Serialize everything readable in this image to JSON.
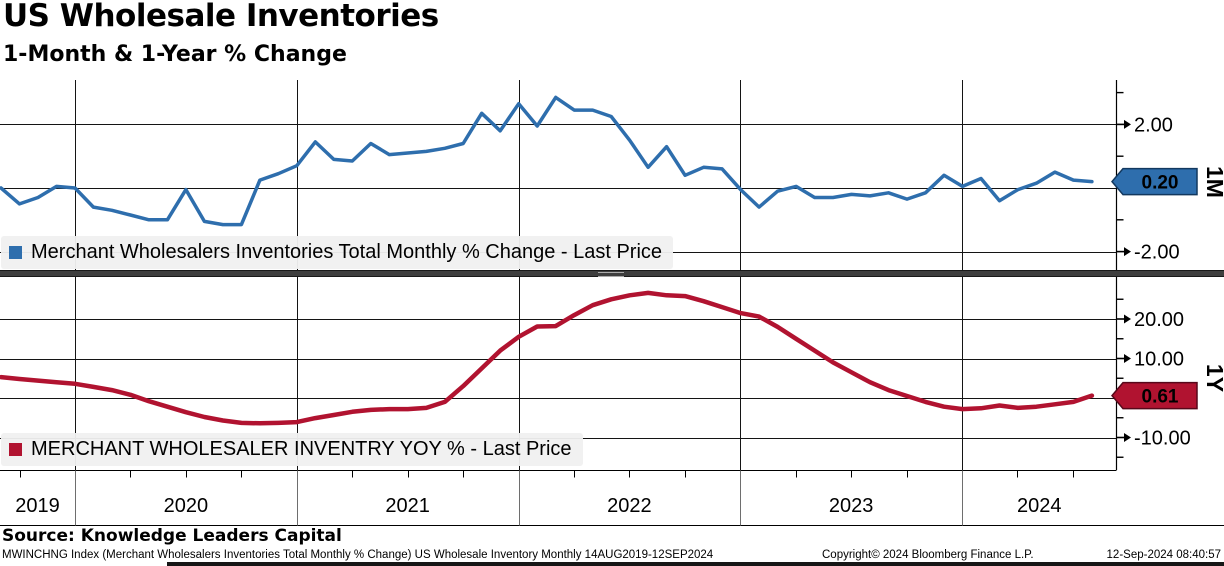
{
  "header": {
    "title": "US Wholesale Inventories",
    "subtitle": "1-Month & 1-Year % Change"
  },
  "colors": {
    "grid": "#141414",
    "axis": "#000000",
    "year_separator": "#6e6e6e",
    "legend_bg": "#f0f0f0",
    "splitter": "#3e3e3e",
    "blue": "#2e6ead",
    "red": "#b11330",
    "tag_text": "#ffffff"
  },
  "x_axis": {
    "year_labels": [
      "2019",
      "2020",
      "2021",
      "2022",
      "2023",
      "2024"
    ]
  },
  "chart_data": [
    {
      "type": "line",
      "panel": "top",
      "axis_label": "1M",
      "legend": "Merchant Wholesalers Inventories Total Monthly % Change - Last Price",
      "color": "#2e6ead",
      "tag_border": "#12385f",
      "last_price": 0.2,
      "last_price_label": "0.20",
      "x_start": "Sep 2019",
      "x_freq": "monthly",
      "x_end": "Aug 2024",
      "ylim": [
        -2.6,
        3.4
      ],
      "grid_values": [
        2,
        0,
        -2
      ],
      "labeled_ticks": [
        {
          "value": 2,
          "label": "2.00"
        },
        {
          "value": -2,
          "label": "-2.00"
        }
      ],
      "minor_ticks": [
        3,
        1,
        0,
        -1
      ],
      "values": [
        0.0,
        -0.5,
        -0.3,
        0.05,
        0.0,
        -0.6,
        -0.7,
        -0.85,
        -1.0,
        -1.0,
        -0.05,
        -1.05,
        -1.15,
        -1.15,
        0.25,
        0.45,
        0.7,
        1.45,
        0.9,
        0.85,
        1.4,
        1.05,
        1.1,
        1.15,
        1.25,
        1.4,
        2.35,
        1.8,
        2.65,
        1.95,
        2.85,
        2.45,
        2.45,
        2.25,
        1.5,
        0.65,
        1.3,
        0.4,
        0.65,
        0.6,
        -0.05,
        -0.6,
        -0.1,
        0.05,
        -0.3,
        -0.3,
        -0.2,
        -0.25,
        -0.15,
        -0.35,
        -0.15,
        0.4,
        0.05,
        0.3,
        -0.4,
        -0.05,
        0.15,
        0.5,
        0.25,
        0.2
      ]
    },
    {
      "type": "line",
      "panel": "bottom",
      "axis_label": "1Y",
      "legend": "MERCHANT WHOLESALER INVENTRY YOY % - Last Price",
      "color": "#b11330",
      "tag_border": "#57081a",
      "last_price": 0.61,
      "last_price_label": "0.61",
      "x_start": "Sep 2019",
      "x_freq": "monthly",
      "x_end": "Aug 2024",
      "ylim": [
        -18.2,
        30.6
      ],
      "grid_values": [
        20,
        10,
        0,
        -10
      ],
      "labeled_ticks": [
        {
          "value": 20,
          "label": "20.00"
        },
        {
          "value": 10,
          "label": "10.00"
        },
        {
          "value": -10,
          "label": "-10.00"
        }
      ],
      "minor_ticks": [
        25,
        15,
        5,
        0,
        -5,
        -15
      ],
      "values": [
        5.3,
        4.8,
        4.4,
        4.0,
        3.6,
        2.8,
        2.0,
        0.8,
        -0.8,
        -2.2,
        -3.6,
        -4.8,
        -5.7,
        -6.3,
        -6.4,
        -6.3,
        -6.1,
        -5.1,
        -4.3,
        -3.5,
        -3.0,
        -2.8,
        -2.8,
        -2.5,
        -1.0,
        3.0,
        7.5,
        12.0,
        15.5,
        18.1,
        18.2,
        21.0,
        23.5,
        25.0,
        26.0,
        26.6,
        26.0,
        25.8,
        24.5,
        23.0,
        21.5,
        20.6,
        18.0,
        15.0,
        12.0,
        9.0,
        6.5,
        4.0,
        2.0,
        0.5,
        -1.0,
        -2.2,
        -2.8,
        -2.6,
        -1.9,
        -2.5,
        -2.2,
        -1.6,
        -1.0,
        0.61
      ]
    }
  ],
  "footer": {
    "source": "Source: Knowledge Leaders Capital",
    "meta_left": "MWINCHNG Index (Merchant Wholesalers Inventories Total Monthly % Change) US Wholesale Inventory  Monthly 14AUG2019-12SEP2024",
    "copyright": "Copyright© 2024 Bloomberg Finance L.P.",
    "timestamp": "12-Sep-2024 08:40:57"
  }
}
